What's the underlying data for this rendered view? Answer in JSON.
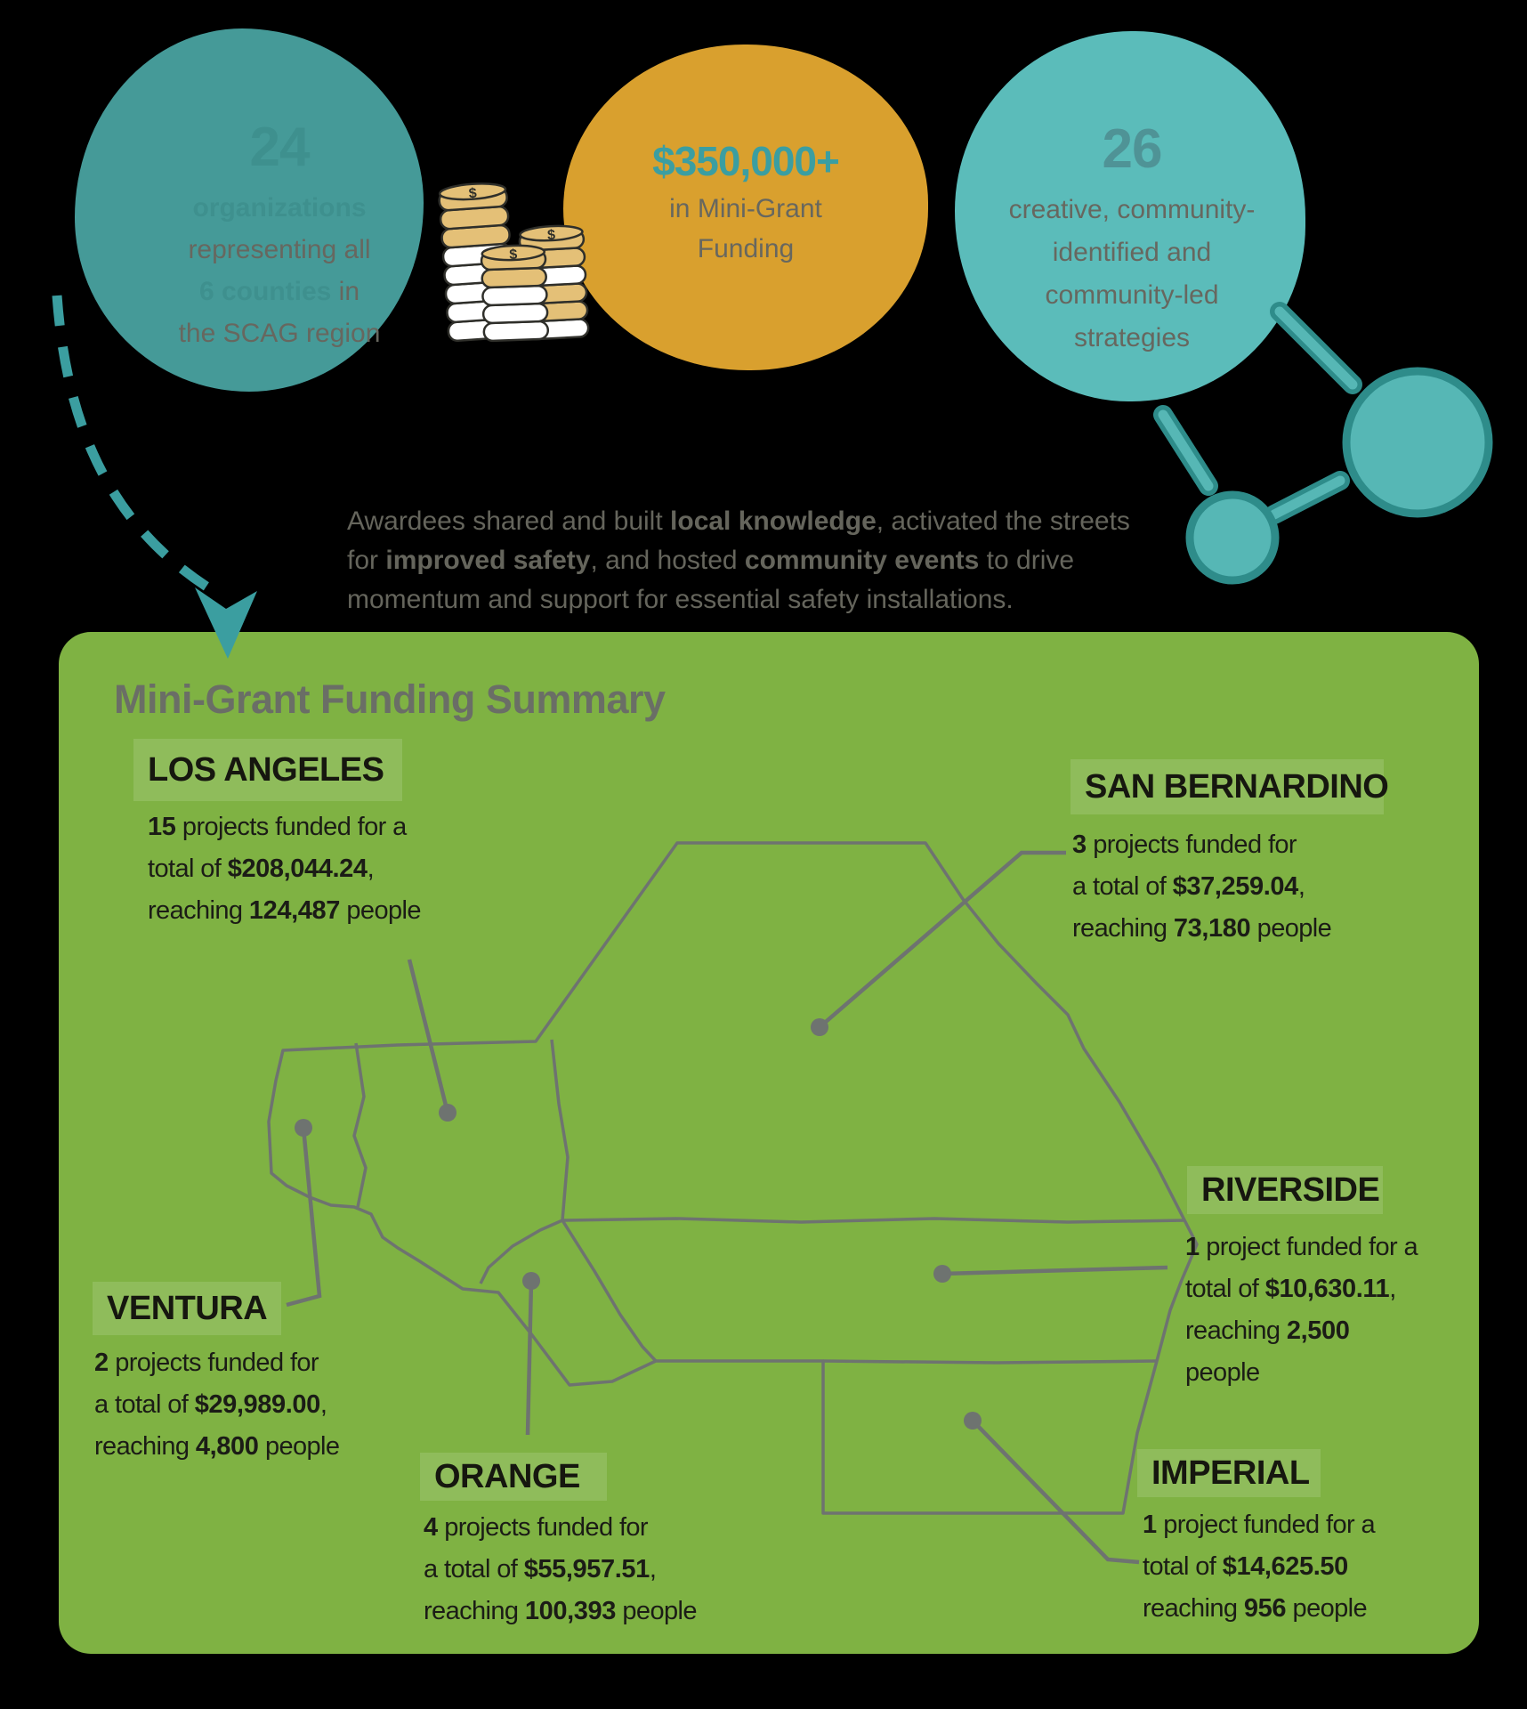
{
  "stats_circles": {
    "circle1": {
      "number": "24",
      "lines": [
        "**organizations**",
        "representing all",
        "**6 counties** in",
        "the SCAG region"
      ]
    },
    "circle2": {
      "amount": "$350,000+",
      "lines": [
        "in Mini-Grant",
        "Funding"
      ]
    },
    "circle3": {
      "number": "26",
      "lines": [
        "creative, community-",
        "identified and",
        "community-led",
        "strategies"
      ]
    }
  },
  "intro": {
    "lines": [
      "Awardees shared and built **local knowledge**, activated the streets",
      "for **improved safety**, and hosted **community events** to drive",
      "momentum and support for essential safety installations."
    ]
  },
  "panel": {
    "title": "Mini-Grant Funding Summary"
  },
  "counties": {
    "los_angeles": {
      "name": "LOS ANGELES",
      "lines": [
        "**15** projects funded for a",
        "total of **$208,044.24**,",
        "reaching **124,487** people"
      ]
    },
    "san_bernardino": {
      "name": "SAN BERNARDINO",
      "lines": [
        "**3** projects funded for",
        "a total of **$37,259.04**,",
        "reaching **73,180** people"
      ]
    },
    "riverside": {
      "name": "RIVERSIDE",
      "lines": [
        "**1** project funded for a",
        "total of **$10,630.11**,",
        "reaching **2,500**",
        "people"
      ]
    },
    "ventura": {
      "name": "VENTURA",
      "lines": [
        "**2** projects funded for",
        "a total of **$29,989.00**,",
        "reaching **4,800** people"
      ]
    },
    "orange": {
      "name": "ORANGE",
      "lines": [
        "**4** projects funded for",
        "a total of **$55,957.51**,",
        "reaching **100,393** people"
      ]
    },
    "imperial": {
      "name": "IMPERIAL",
      "lines": [
        "**1** project funded for a",
        "total of **$14,625.50**",
        "reaching **956** people"
      ]
    }
  },
  "icons": {
    "dollar": "$",
    "coin_stacks": "stacked-dollar-coins",
    "network": "connected-network-nodes",
    "arrow": "dashed-curved-arrow"
  },
  "colors": {
    "teal": "#459A98",
    "light_teal": "#5BBCBA",
    "gold": "#D9A02E",
    "accent_teal_text": "#3B9EA1",
    "panel_green": "#7FB243",
    "map_gray": "#6E7370",
    "body_gray": "#65655C",
    "dark_text": "#1B1C16"
  }
}
